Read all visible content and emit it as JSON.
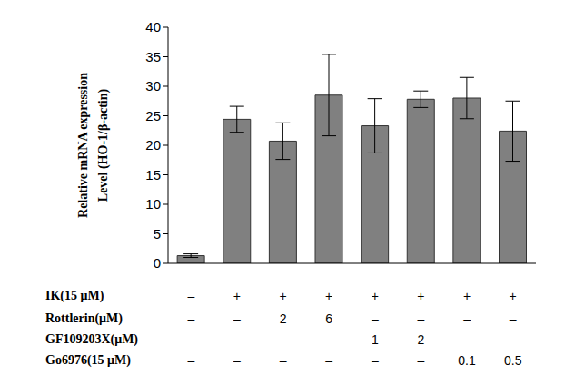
{
  "chart_data": {
    "type": "bar",
    "categories": [
      null,
      null,
      null,
      null,
      null,
      null,
      null,
      null
    ],
    "values": [
      1.3,
      24.4,
      20.7,
      28.5,
      23.3,
      27.8,
      28.0,
      22.4
    ],
    "errors": [
      0.3,
      2.2,
      3.1,
      6.9,
      4.6,
      1.4,
      3.5,
      5.1
    ],
    "color": "#808080",
    "ylim": [
      0,
      40
    ],
    "yticks": [
      0,
      5,
      10,
      15,
      20,
      25,
      30,
      35,
      40
    ],
    "y_label": [
      "Relative mRNA expression",
      "Level (HO-1/β-actin)"
    ],
    "grid": false,
    "tick_labels": "y",
    "treatments": [
      {
        "label": "IK(15 μM)",
        "values": [
          "–",
          "+",
          "+",
          "+",
          "+",
          "+",
          "+",
          "+"
        ]
      },
      {
        "label": "Rottlerin(μM)",
        "values": [
          "–",
          "–",
          "2",
          "6",
          "–",
          "–",
          "–",
          "–"
        ]
      },
      {
        "label": "GF109203X(μM)",
        "values": [
          "–",
          "–",
          "–",
          "–",
          "1",
          "2",
          "–",
          "–"
        ]
      },
      {
        "label": "Go6976(15 μM)",
        "values": [
          "–",
          "–",
          "–",
          "–",
          "–",
          "–",
          "0.1",
          "0.5"
        ]
      }
    ]
  }
}
